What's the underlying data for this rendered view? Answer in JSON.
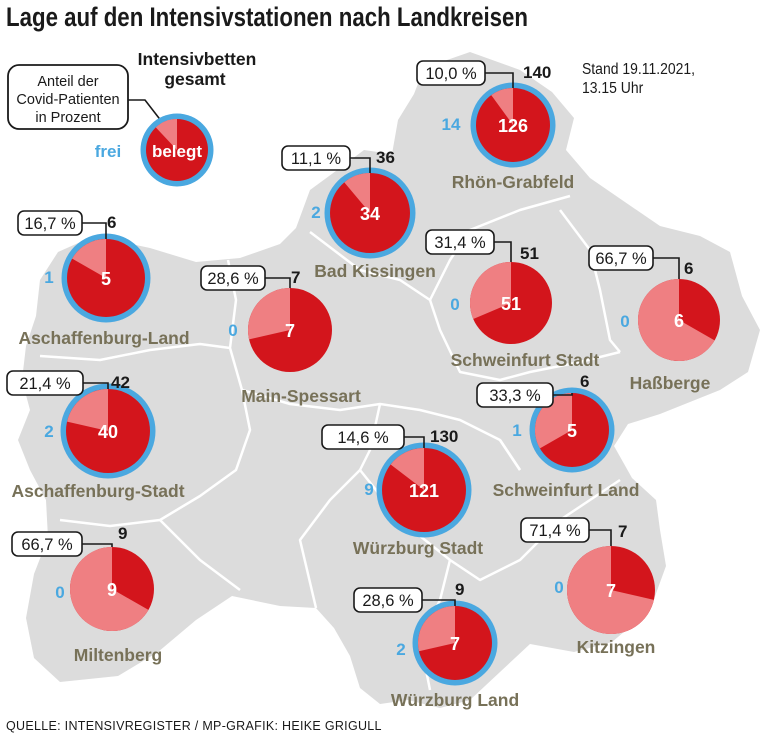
{
  "title": "Lage auf den Intensivstationen nach Landkreisen",
  "stand": {
    "line1": "Stand 19.11.2021,",
    "line2": "13.15 Uhr"
  },
  "source": "QUELLE: INTENSIVREGISTER / MP-GRAFIK: HEIKE GRIGULL",
  "colors": {
    "covid": "#ef7f82",
    "other": "#d3151c",
    "free": "#4aa8e0",
    "region_label": "#777158",
    "map_fill": "#dcdcdc",
    "map_border": "#ffffff"
  },
  "legend": {
    "title_line1": "Intensivbetten",
    "title_line2": "gesamt",
    "box_line1": "Anteil der",
    "box_line2": "Covid-Patienten",
    "box_line3": "in Prozent",
    "free_label": "frei",
    "occupied_label": "belegt"
  },
  "districts": [
    {
      "name": "Rhön-Grabfeld",
      "covid_pct": "10,0 %",
      "covid_share": 0.1,
      "total": "140",
      "occupied": "126",
      "free": "14"
    },
    {
      "name": "Bad Kissingen",
      "covid_pct": "11,1 %",
      "covid_share": 0.111,
      "total": "36",
      "occupied": "34",
      "free": "2"
    },
    {
      "name": "Aschaffenburg-Land",
      "covid_pct": "16,7 %",
      "covid_share": 0.167,
      "total": "6",
      "occupied": "5",
      "free": "1"
    },
    {
      "name": "Main-Spessart",
      "covid_pct": "28,6 %",
      "covid_share": 0.286,
      "total": "7",
      "occupied": "7",
      "free": "0"
    },
    {
      "name": "Schweinfurt Stadt",
      "covid_pct": "31,4 %",
      "covid_share": 0.314,
      "total": "51",
      "occupied": "51",
      "free": "0"
    },
    {
      "name": "Haßberge",
      "covid_pct": "66,7 %",
      "covid_share": 0.667,
      "total": "6",
      "occupied": "6",
      "free": "0"
    },
    {
      "name": "Aschaffenburg-Stadt",
      "covid_pct": "21,4 %",
      "covid_share": 0.214,
      "total": "42",
      "occupied": "40",
      "free": "2"
    },
    {
      "name": "Schweinfurt Land",
      "covid_pct": "33,3 %",
      "covid_share": 0.333,
      "total": "6",
      "occupied": "5",
      "free": "1"
    },
    {
      "name": "Würzburg Stadt",
      "covid_pct": "14,6 %",
      "covid_share": 0.146,
      "total": "130",
      "occupied": "121",
      "free": "9"
    },
    {
      "name": "Miltenberg",
      "covid_pct": "66,7 %",
      "covid_share": 0.667,
      "total": "9",
      "occupied": "9",
      "free": "0"
    },
    {
      "name": "Kitzingen",
      "covid_pct": "71,4 %",
      "covid_share": 0.714,
      "total": "7",
      "occupied": "7",
      "free": "0"
    },
    {
      "name": "Würzburg Land",
      "covid_pct": "28,6 %",
      "covid_share": 0.286,
      "total": "9",
      "occupied": "7",
      "free": "2"
    }
  ]
}
